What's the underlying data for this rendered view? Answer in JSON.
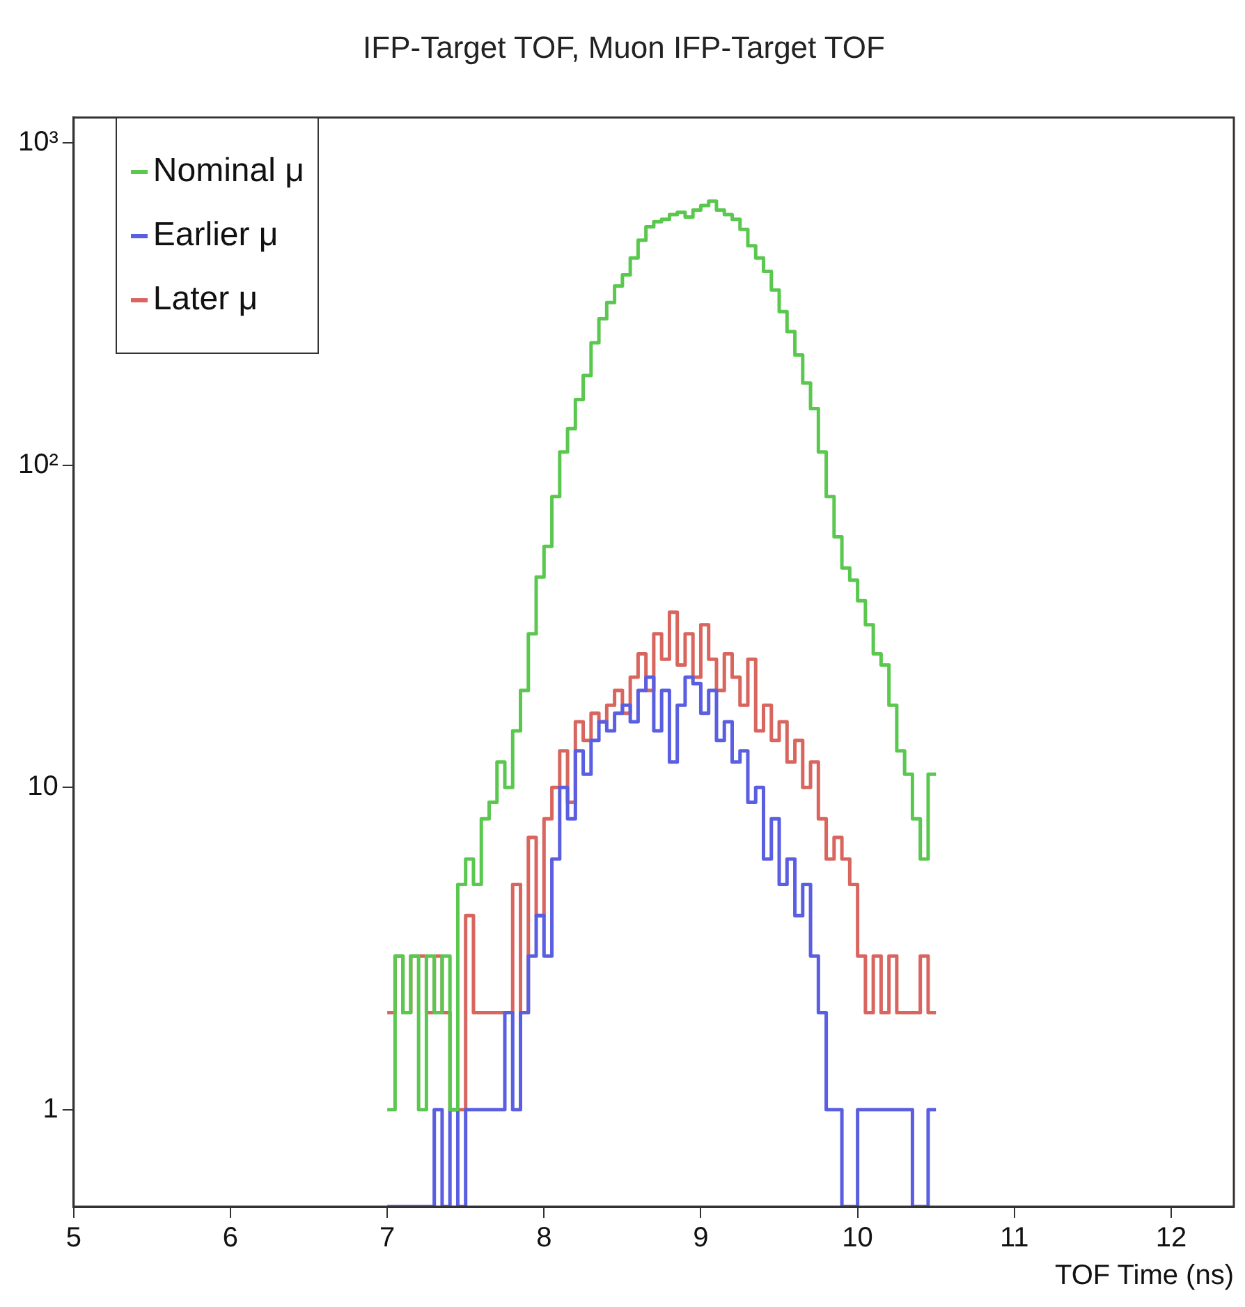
{
  "chart_data": {
    "type": "histogram",
    "title": "IFP-Target TOF, Muon IFP-Target TOF",
    "xlabel": "TOF Time (ns)",
    "bins": [
      7.0,
      7.05,
      7.1,
      7.15,
      7.2,
      7.25,
      7.3,
      7.35,
      7.4,
      7.45,
      7.5,
      7.55,
      7.6,
      7.65,
      7.7,
      7.75,
      7.8,
      7.85,
      7.9,
      7.95,
      8.0,
      8.05,
      8.1,
      8.15,
      8.2,
      8.25,
      8.3,
      8.35,
      8.4,
      8.45,
      8.5,
      8.55,
      8.6,
      8.65,
      8.7,
      8.75,
      8.8,
      8.85,
      8.9,
      8.95,
      9.0,
      9.05,
      9.1,
      9.15,
      9.2,
      9.25,
      9.3,
      9.35,
      9.4,
      9.45,
      9.5,
      9.55,
      9.6,
      9.65,
      9.7,
      9.75,
      9.8,
      9.85,
      9.9,
      9.95,
      10.0,
      10.05,
      10.1,
      10.15,
      10.2,
      10.25,
      10.3,
      10.35,
      10.4,
      10.45,
      10.5
    ],
    "series": [
      {
        "name": "Nominal μ",
        "color": "#5ac84f",
        "values": [
          1,
          3,
          2,
          3,
          1,
          3,
          2,
          3,
          1,
          5,
          6,
          5,
          8,
          9,
          12,
          10,
          15,
          20,
          30,
          45,
          56,
          80,
          110,
          130,
          160,
          190,
          240,
          285,
          320,
          360,
          390,
          440,
          500,
          550,
          570,
          580,
          600,
          610,
          590,
          620,
          640,
          660,
          620,
          600,
          580,
          540,
          480,
          440,
          400,
          350,
          300,
          260,
          220,
          180,
          150,
          110,
          80,
          60,
          48,
          44,
          38,
          32,
          26,
          24,
          18,
          13,
          11,
          8,
          6,
          11
        ]
      },
      {
        "name": "Earlier μ",
        "color": "#5a5ee0",
        "values": [
          null,
          null,
          null,
          null,
          null,
          null,
          1,
          null,
          1,
          null,
          1,
          1,
          1,
          1,
          1,
          2,
          1,
          2,
          3,
          4,
          3,
          6,
          10,
          8,
          13,
          11,
          14,
          16,
          15,
          17,
          18,
          16,
          20,
          22,
          15,
          20,
          12,
          18,
          22,
          21,
          17,
          20,
          14,
          16,
          12,
          13,
          9,
          10,
          6,
          8,
          5,
          6,
          4,
          5,
          3,
          2,
          1,
          1,
          null,
          null,
          1,
          1,
          1,
          1,
          1,
          1,
          1,
          null,
          null,
          1
        ]
      },
      {
        "name": "Later μ",
        "color": "#d9655f",
        "values": [
          2,
          3,
          2,
          3,
          3,
          2,
          3,
          2,
          1,
          1,
          4,
          2,
          2,
          2,
          2,
          2,
          5,
          2,
          7,
          4,
          8,
          10,
          13,
          9,
          16,
          14,
          17,
          16,
          18,
          20,
          17,
          22,
          26,
          20,
          30,
          25,
          35,
          24,
          30,
          22,
          32,
          25,
          20,
          26,
          22,
          18,
          25,
          15,
          18,
          14,
          16,
          12,
          14,
          10,
          12,
          8,
          6,
          7,
          6,
          5,
          3,
          2,
          3,
          2,
          3,
          2,
          2,
          2,
          3,
          2
        ]
      }
    ],
    "log": "y",
    "xlim": [
      5,
      12.4
    ],
    "ylim": [
      0.5,
      1200
    ],
    "xticks": [
      5,
      6,
      7,
      8,
      9,
      10,
      11,
      12
    ],
    "yticks": [
      1,
      10,
      {
        "value": 100,
        "label": "10²"
      },
      {
        "value": 1000,
        "label": "10³"
      }
    ],
    "legend": "top left"
  }
}
